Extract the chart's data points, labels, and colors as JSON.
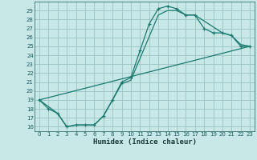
{
  "xlabel": "Humidex (Indice chaleur)",
  "bg_color": "#c8e8e8",
  "grid_color": "#a0c8c8",
  "line_color": "#1a7a6e",
  "xlim": [
    -0.5,
    23.5
  ],
  "ylim": [
    15.5,
    30.0
  ],
  "xticks": [
    0,
    1,
    2,
    3,
    4,
    5,
    6,
    7,
    8,
    9,
    10,
    11,
    12,
    13,
    14,
    15,
    16,
    17,
    18,
    19,
    20,
    21,
    22,
    23
  ],
  "yticks": [
    16,
    17,
    18,
    19,
    20,
    21,
    22,
    23,
    24,
    25,
    26,
    27,
    28,
    29
  ],
  "line1_x": [
    0,
    1,
    2,
    3,
    4,
    5,
    6,
    7,
    8,
    9,
    10,
    11,
    12,
    13,
    14,
    15,
    16,
    17,
    18,
    19,
    20,
    21,
    22,
    23
  ],
  "line1_y": [
    19.0,
    18.0,
    17.5,
    16.0,
    16.2,
    16.2,
    16.2,
    17.2,
    19.0,
    21.0,
    21.5,
    24.5,
    27.5,
    29.2,
    29.5,
    29.2,
    28.5,
    28.5,
    27.0,
    26.5,
    26.5,
    26.2,
    25.0,
    25.0
  ],
  "line2_x": [
    0,
    2,
    3,
    4,
    5,
    6,
    7,
    8,
    9,
    10,
    13,
    14,
    15,
    16,
    17,
    20,
    21,
    22,
    23
  ],
  "line2_y": [
    19.0,
    17.5,
    16.0,
    16.2,
    16.2,
    16.2,
    17.2,
    19.0,
    20.8,
    21.2,
    28.5,
    29.0,
    29.0,
    28.5,
    28.5,
    26.5,
    26.2,
    25.2,
    25.0
  ],
  "line3_x": [
    0,
    23
  ],
  "line3_y": [
    19.0,
    25.0
  ]
}
